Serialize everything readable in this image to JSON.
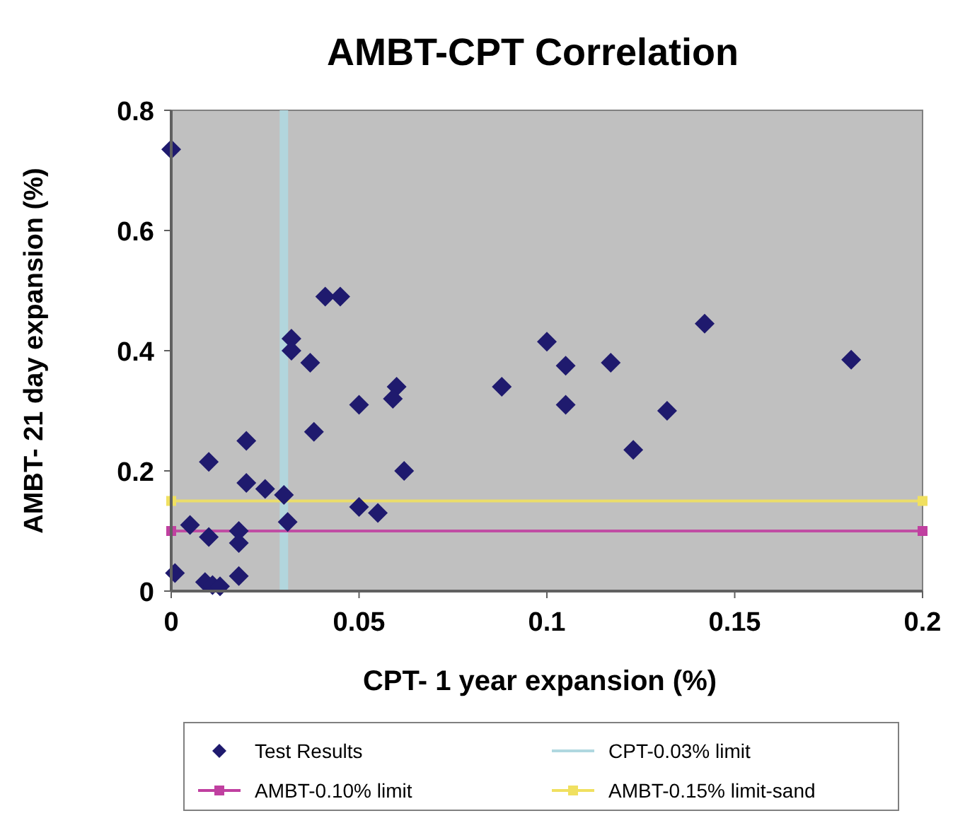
{
  "chart_data": {
    "type": "scatter",
    "title": "AMBT-CPT Correlation",
    "xlabel": "CPT- 1 year expansion (%)",
    "ylabel": "AMBT- 21 day expansion (%)",
    "xlim": [
      0,
      0.2
    ],
    "xticks": [
      0,
      0.05,
      0.1,
      0.15,
      0.2
    ],
    "ylim": [
      0,
      0.8
    ],
    "yticks": [
      0,
      0.2,
      0.4,
      0.6,
      0.8
    ],
    "grid": false,
    "legend": "bottom",
    "series": [
      {
        "name": "Test Results",
        "marker": "diamond",
        "color": "#1f1a6e",
        "x": [
          0,
          0.001,
          0.005,
          0.01,
          0.01,
          0.009,
          0.011,
          0.013,
          0.018,
          0.018,
          0.018,
          0.02,
          0.02,
          0.025,
          0.03,
          0.031,
          0.032,
          0.032,
          0.037,
          0.038,
          0.041,
          0.045,
          0.05,
          0.05,
          0.055,
          0.06,
          0.059,
          0.062,
          0.088,
          0.1,
          0.105,
          0.105,
          0.117,
          0.123,
          0.132,
          0.142,
          0.181
        ],
        "values": [
          0.735,
          0.03,
          0.11,
          0.215,
          0.09,
          0.015,
          0.01,
          0.008,
          0.025,
          0.1,
          0.08,
          0.25,
          0.18,
          0.17,
          0.16,
          0.115,
          0.42,
          0.4,
          0.38,
          0.265,
          0.49,
          0.49,
          0.31,
          0.14,
          0.13,
          0.34,
          0.32,
          0.2,
          0.34,
          0.415,
          0.375,
          0.31,
          0.38,
          0.235,
          0.3,
          0.445,
          0.385
        ]
      },
      {
        "name": "CPT-0.03% limit",
        "type": "line",
        "marker": "none",
        "color": "#b0d8e0",
        "x": [
          0.03,
          0.03
        ],
        "values": [
          0,
          0.8
        ]
      },
      {
        "name": "AMBT-0.10% limit",
        "type": "line",
        "marker": "square",
        "color": "#c040a0",
        "x": [
          0,
          0.2
        ],
        "values": [
          0.1,
          0.1
        ]
      },
      {
        "name": "AMBT-0.15% limit-sand",
        "type": "line",
        "marker": "square",
        "color": "#f0e060",
        "x": [
          0,
          0.2
        ],
        "values": [
          0.15,
          0.15
        ]
      }
    ]
  }
}
